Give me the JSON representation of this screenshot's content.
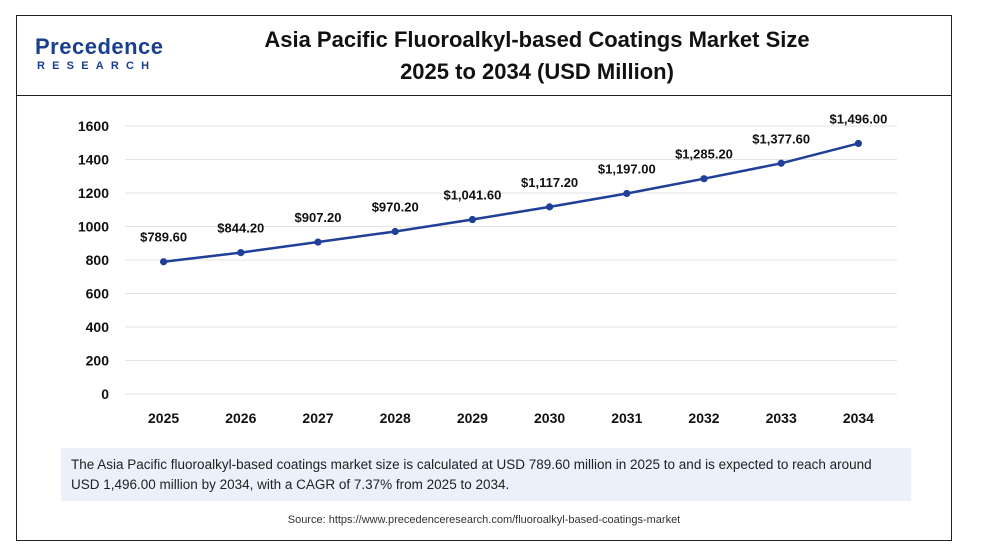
{
  "logo": {
    "brand": "Precedence",
    "sub": "RESEARCH"
  },
  "title_line1": "Asia Pacific Fluoroalkyl-based Coatings Market Size",
  "title_line2": "2025 to 2034 (USD Million)",
  "description": "The Asia Pacific fluoroalkyl-based coatings market size is calculated at USD 789.60 million in 2025 to and is expected to reach around USD 1,496.00 million by 2034, with a CAGR of 7.37% from 2025 to 2034.",
  "source": "Source: https://www.precedenceresearch.com/fluoroalkyl-based-coatings-market",
  "colors": {
    "line": "#1f3f99",
    "brand": "#1b3f8f",
    "desc_bg": "#eaf1fa"
  },
  "chart_data": {
    "type": "line",
    "title": "Asia Pacific Fluoroalkyl-based Coatings Market Size 2025 to 2034 (USD Million)",
    "xlabel": "",
    "ylabel": "",
    "categories": [
      "2025",
      "2026",
      "2027",
      "2028",
      "2029",
      "2030",
      "2031",
      "2032",
      "2033",
      "2034"
    ],
    "values": [
      789.6,
      844.2,
      907.2,
      970.2,
      1041.6,
      1117.2,
      1197.0,
      1285.2,
      1377.6,
      1496.0
    ],
    "data_labels": [
      "$789.60",
      "$844.20",
      "$907.20",
      "$970.20",
      "$1,041.60",
      "$1,117.20",
      "$1,197.00",
      "$1,285.20",
      "$1,377.60",
      "$1,496.00"
    ],
    "yticks": [
      0,
      200,
      400,
      600,
      800,
      1000,
      1200,
      1400,
      1600
    ],
    "ylim": [
      0,
      1600
    ],
    "grid": true,
    "legend": "none"
  }
}
